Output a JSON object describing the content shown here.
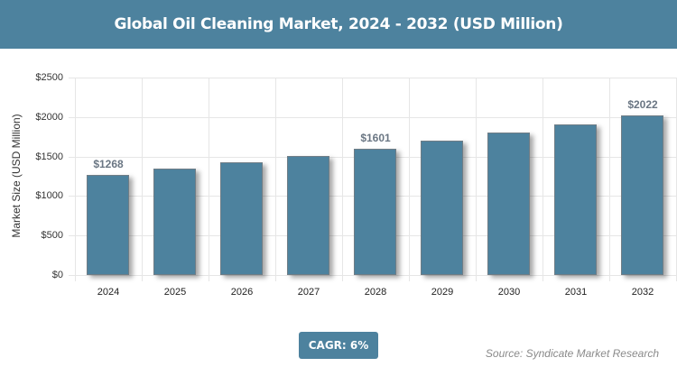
{
  "header": {
    "title": "Global Oil Cleaning Market, 2024 - 2032 (USD Million)"
  },
  "footer": {
    "cagr_label": "CAGR: 6%",
    "source": "Source: Syndicate Market Research"
  },
  "colors": {
    "bar": "#4d829e",
    "header_bg": "#4d829e",
    "label": "#6a7683"
  },
  "chart_data": {
    "type": "bar",
    "title": "Global Oil Cleaning Market, 2024 - 2032 (USD Million)",
    "xlabel": "",
    "ylabel": "Market Size (USD Million)",
    "categories": [
      "2024",
      "2025",
      "2026",
      "2027",
      "2028",
      "2029",
      "2030",
      "2031",
      "2032"
    ],
    "values": [
      1268,
      1344,
      1425,
      1510,
      1601,
      1697,
      1799,
      1907,
      2022
    ],
    "data_labels": {
      "0": "$1268",
      "4": "$1601",
      "8": "$2022"
    },
    "ylim": [
      0,
      2500
    ],
    "yticks": [
      "$0",
      "$500",
      "$1000",
      "$1500",
      "$2000",
      "$2500"
    ],
    "grid": true,
    "legend": null,
    "annotations": [
      "CAGR: 6%",
      "Source: Syndicate Market Research"
    ]
  }
}
